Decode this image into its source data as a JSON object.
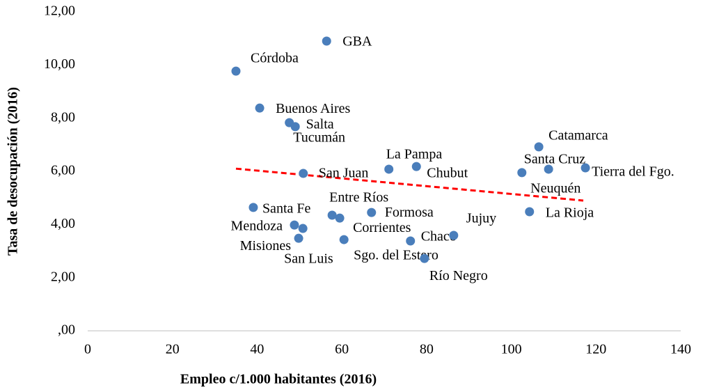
{
  "chart_data": {
    "type": "scatter",
    "xlabel": "Empleo c/1.000 habitantes (2016)",
    "ylabel": "Tasa de desocupación (2016)",
    "xlim": [
      0,
      140
    ],
    "xticks": [
      0,
      20,
      40,
      60,
      80,
      100,
      120,
      140
    ],
    "ylim": [
      0,
      12
    ],
    "yticks": [
      {
        "value": 0,
        "label": ",00"
      },
      {
        "value": 2,
        "label": "2,00"
      },
      {
        "value": 4,
        "label": "4,00"
      },
      {
        "value": 6,
        "label": "6,00"
      },
      {
        "value": 8,
        "label": "8,00"
      },
      {
        "value": 10,
        "label": "10,00"
      },
      {
        "value": 12,
        "label": "12,00"
      }
    ],
    "grid": false,
    "series": [
      {
        "color": "#4a7ebb",
        "labels": [
          "GBA",
          "Córdoba",
          "Buenos Aires",
          "Salta",
          "Tucumán",
          "San Juan",
          "La Pampa",
          "Chubut",
          "Catamarca",
          "Santa Cruz",
          "Neuquén",
          "Tierra del Fgo.",
          "La Rioja",
          "Santa Fe",
          "Entre Ríos",
          "Corrientes",
          "Formosa",
          "Mendoza",
          "San Luis",
          "Misiones",
          "Sgo. del Estero",
          "Chaco",
          "Jujuy",
          "Río Negro"
        ],
        "x": [
          56.4,
          35.0,
          40.6,
          47.6,
          49.0,
          50.9,
          71.1,
          77.6,
          106.5,
          102.5,
          108.8,
          117.5,
          104.3,
          39.1,
          57.7,
          59.5,
          67.0,
          48.8,
          50.8,
          49.8,
          60.5,
          76.2,
          86.4,
          79.5
        ],
        "values": [
          10.9,
          9.77,
          8.38,
          7.83,
          7.68,
          5.92,
          6.08,
          6.18,
          6.92,
          5.95,
          6.08,
          6.13,
          4.48,
          4.64,
          4.35,
          4.24,
          4.45,
          3.98,
          3.85,
          3.48,
          3.43,
          3.38,
          3.59,
          2.72
        ]
      }
    ],
    "trendline": {
      "color": "#ff0000",
      "x": [
        35,
        117
      ],
      "values": [
        6.1,
        4.9
      ]
    }
  }
}
